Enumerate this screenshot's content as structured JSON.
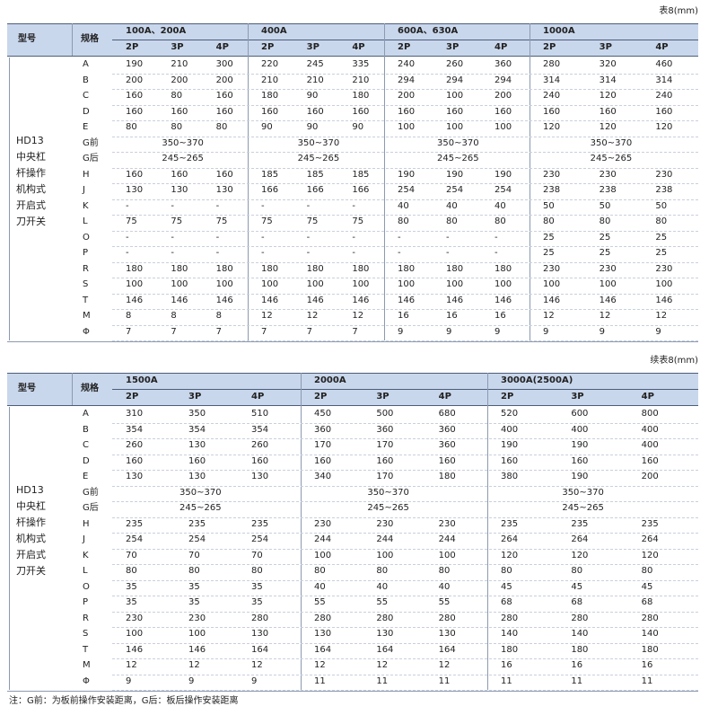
{
  "tables": [
    {
      "caption": "表8(mm)",
      "header": {
        "model": "型号",
        "spec": "规格"
      },
      "groups": [
        {
          "name": "100A、200A",
          "poles": [
            "2P",
            "3P",
            "4P"
          ]
        },
        {
          "name": "400A",
          "poles": [
            "2P",
            "3P",
            "4P"
          ]
        },
        {
          "name": "600A、630A",
          "poles": [
            "2P",
            "3P",
            "4P"
          ]
        },
        {
          "name": "1000A",
          "poles": [
            "2P",
            "3P",
            "4P"
          ]
        }
      ],
      "model": [
        "HD13",
        "中央杠",
        "杆操作",
        "机构式",
        "开启式",
        "刀开关"
      ],
      "rows": [
        {
          "label": "A",
          "cells": [
            "190",
            "210",
            "300",
            "220",
            "245",
            "335",
            "240",
            "260",
            "360",
            "280",
            "320",
            "460"
          ]
        },
        {
          "label": "B",
          "cells": [
            "200",
            "200",
            "200",
            "210",
            "210",
            "210",
            "294",
            "294",
            "294",
            "314",
            "314",
            "314"
          ]
        },
        {
          "label": "C",
          "cells": [
            "160",
            "80",
            "160",
            "180",
            "90",
            "180",
            "200",
            "100",
            "200",
            "240",
            "120",
            "240"
          ]
        },
        {
          "label": "D",
          "cells": [
            "160",
            "160",
            "160",
            "160",
            "160",
            "160",
            "160",
            "160",
            "160",
            "160",
            "160",
            "160"
          ]
        },
        {
          "label": "E",
          "cells": [
            "80",
            "80",
            "80",
            "90",
            "90",
            "90",
            "100",
            "100",
            "100",
            "120",
            "120",
            "120"
          ]
        },
        {
          "label": "G前",
          "cells": [
            "350~370",
            "350~370",
            "350~370",
            "350~370"
          ]
        },
        {
          "label": "G后",
          "cells": [
            "245~265",
            "245~265",
            "245~265",
            "245~265"
          ]
        },
        {
          "label": "H",
          "cells": [
            "160",
            "160",
            "160",
            "185",
            "185",
            "185",
            "190",
            "190",
            "190",
            "230",
            "230",
            "230"
          ]
        },
        {
          "label": "J",
          "cells": [
            "130",
            "130",
            "130",
            "166",
            "166",
            "166",
            "254",
            "254",
            "254",
            "238",
            "238",
            "238"
          ]
        },
        {
          "label": "K",
          "cells": [
            "-",
            "-",
            "-",
            "-",
            "-",
            "-",
            "40",
            "40",
            "40",
            "50",
            "50",
            "50"
          ]
        },
        {
          "label": "L",
          "cells": [
            "75",
            "75",
            "75",
            "75",
            "75",
            "75",
            "80",
            "80",
            "80",
            "80",
            "80",
            "80"
          ]
        },
        {
          "label": "O",
          "cells": [
            "-",
            "-",
            "-",
            "-",
            "-",
            "-",
            "-",
            "-",
            "-",
            "25",
            "25",
            "25"
          ]
        },
        {
          "label": "P",
          "cells": [
            "-",
            "-",
            "-",
            "-",
            "-",
            "-",
            "-",
            "-",
            "-",
            "25",
            "25",
            "25"
          ]
        },
        {
          "label": "R",
          "cells": [
            "180",
            "180",
            "180",
            "180",
            "180",
            "180",
            "180",
            "180",
            "180",
            "230",
            "230",
            "230"
          ]
        },
        {
          "label": "S",
          "cells": [
            "100",
            "100",
            "100",
            "100",
            "100",
            "100",
            "100",
            "100",
            "100",
            "100",
            "100",
            "100"
          ]
        },
        {
          "label": "T",
          "cells": [
            "146",
            "146",
            "146",
            "146",
            "146",
            "146",
            "146",
            "146",
            "146",
            "146",
            "146",
            "146"
          ]
        },
        {
          "label": "M",
          "cells": [
            "8",
            "8",
            "8",
            "12",
            "12",
            "12",
            "16",
            "16",
            "16",
            "12",
            "12",
            "12"
          ]
        },
        {
          "label": "Φ",
          "cells": [
            "7",
            "7",
            "7",
            "7",
            "7",
            "7",
            "9",
            "9",
            "9",
            "9",
            "9",
            "9"
          ]
        }
      ]
    },
    {
      "caption": "续表8(mm)",
      "header": {
        "model": "型号",
        "spec": "规格"
      },
      "groups": [
        {
          "name": "1500A",
          "poles": [
            "2P",
            "3P",
            "4P"
          ]
        },
        {
          "name": "2000A",
          "poles": [
            "2P",
            "3P",
            "4P"
          ]
        },
        {
          "name": "3000A(2500A)",
          "poles": [
            "2P",
            "3P",
            "4P"
          ]
        }
      ],
      "model": [
        "HD13",
        "中央杠",
        "杆操作",
        "机构式",
        "开启式",
        "刀开关"
      ],
      "rows": [
        {
          "label": "A",
          "cells": [
            "310",
            "350",
            "510",
            "450",
            "500",
            "680",
            "520",
            "600",
            "800"
          ]
        },
        {
          "label": "B",
          "cells": [
            "354",
            "354",
            "354",
            "360",
            "360",
            "360",
            "400",
            "400",
            "400"
          ]
        },
        {
          "label": "C",
          "cells": [
            "260",
            "130",
            "260",
            "170",
            "170",
            "360",
            "190",
            "190",
            "400"
          ]
        },
        {
          "label": "D",
          "cells": [
            "160",
            "160",
            "160",
            "160",
            "160",
            "160",
            "160",
            "160",
            "160"
          ]
        },
        {
          "label": "E",
          "cells": [
            "130",
            "130",
            "130",
            "340",
            "170",
            "180",
            "380",
            "190",
            "200"
          ]
        },
        {
          "label": "G前",
          "cells": [
            "350~370",
            "350~370",
            "350~370"
          ]
        },
        {
          "label": "G后",
          "cells": [
            "245~265",
            "245~265",
            "245~265"
          ]
        },
        {
          "label": "H",
          "cells": [
            "235",
            "235",
            "235",
            "230",
            "230",
            "230",
            "235",
            "235",
            "235"
          ]
        },
        {
          "label": "J",
          "cells": [
            "254",
            "254",
            "254",
            "244",
            "244",
            "244",
            "264",
            "264",
            "264"
          ]
        },
        {
          "label": "K",
          "cells": [
            "70",
            "70",
            "70",
            "100",
            "100",
            "100",
            "120",
            "120",
            "120"
          ]
        },
        {
          "label": "L",
          "cells": [
            "80",
            "80",
            "80",
            "80",
            "80",
            "80",
            "80",
            "80",
            "80"
          ]
        },
        {
          "label": "O",
          "cells": [
            "35",
            "35",
            "35",
            "40",
            "40",
            "40",
            "45",
            "45",
            "45"
          ]
        },
        {
          "label": "P",
          "cells": [
            "35",
            "35",
            "35",
            "55",
            "55",
            "55",
            "68",
            "68",
            "68"
          ]
        },
        {
          "label": "R",
          "cells": [
            "230",
            "230",
            "280",
            "280",
            "280",
            "280",
            "280",
            "280",
            "280"
          ]
        },
        {
          "label": "S",
          "cells": [
            "100",
            "100",
            "130",
            "130",
            "130",
            "130",
            "140",
            "140",
            "140"
          ]
        },
        {
          "label": "T",
          "cells": [
            "146",
            "146",
            "164",
            "164",
            "164",
            "164",
            "180",
            "180",
            "180"
          ]
        },
        {
          "label": "M",
          "cells": [
            "12",
            "12",
            "12",
            "12",
            "12",
            "12",
            "16",
            "16",
            "16"
          ]
        },
        {
          "label": "Φ",
          "cells": [
            "9",
            "9",
            "9",
            "11",
            "11",
            "11",
            "11",
            "11",
            "11"
          ]
        }
      ]
    }
  ],
  "note": "注：G前：为板前操作安装距离，G后：板后操作安装距离"
}
